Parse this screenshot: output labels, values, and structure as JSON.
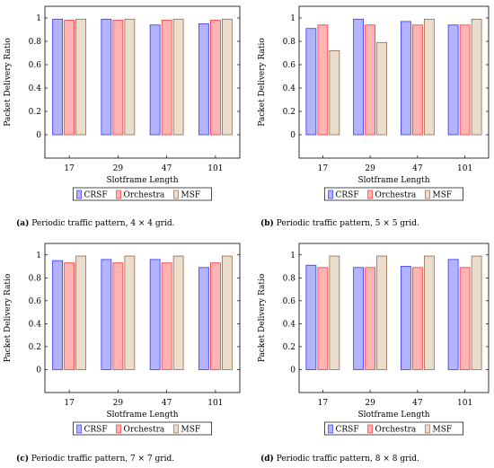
{
  "styles": {
    "series_fill": [
      "#b3b3ff",
      "#ffb3b3",
      "#ecdccc"
    ],
    "series_stroke": [
      "#3333ff",
      "#ff3333",
      "#8c6d4f"
    ]
  },
  "chart_data": [
    {
      "type": "bar",
      "panel_label": "(a)",
      "caption": "Periodic traffic pattern, 4 × 4 grid.",
      "xlabel": "Slotframe Length",
      "ylabel": "Packet Delivery Ratio",
      "categories": [
        "17",
        "29",
        "47",
        "101"
      ],
      "yticks": [
        "0",
        "0.2",
        "0.4",
        "0.6",
        "0.8",
        "1"
      ],
      "ylim": [
        -0.2,
        1.1
      ],
      "grid": false,
      "legend": "below",
      "series": [
        {
          "name": "CRSF",
          "values": [
            0.99,
            0.99,
            0.94,
            0.95
          ]
        },
        {
          "name": "Orchestra",
          "values": [
            0.98,
            0.98,
            0.98,
            0.98
          ]
        },
        {
          "name": "MSF",
          "values": [
            0.99,
            0.99,
            0.99,
            0.99
          ]
        }
      ]
    },
    {
      "type": "bar",
      "panel_label": "(b)",
      "caption": "Periodic traffic pattern, 5 × 5 grid.",
      "xlabel": "Slotframe Length",
      "ylabel": "Packet Delivery Ratio",
      "categories": [
        "17",
        "29",
        "47",
        "101"
      ],
      "yticks": [
        "0",
        "0.2",
        "0.4",
        "0.6",
        "0.8",
        "1"
      ],
      "ylim": [
        -0.2,
        1.1
      ],
      "grid": false,
      "legend": "below",
      "series": [
        {
          "name": "CRSF",
          "values": [
            0.91,
            0.99,
            0.97,
            0.94
          ]
        },
        {
          "name": "Orchestra",
          "values": [
            0.94,
            0.94,
            0.94,
            0.94
          ]
        },
        {
          "name": "MSF",
          "values": [
            0.72,
            0.79,
            0.99,
            0.99
          ]
        }
      ]
    },
    {
      "type": "bar",
      "panel_label": "(c)",
      "caption": "Periodic traffic pattern, 7 × 7 grid.",
      "xlabel": "Slotframe Length",
      "ylabel": "Packet Delivery Ratio",
      "categories": [
        "17",
        "29",
        "47",
        "101"
      ],
      "yticks": [
        "0",
        "0.2",
        "0.4",
        "0.6",
        "0.8",
        "1"
      ],
      "ylim": [
        -0.2,
        1.1
      ],
      "grid": false,
      "legend": "below",
      "series": [
        {
          "name": "CRSF",
          "values": [
            0.95,
            0.96,
            0.96,
            0.89
          ]
        },
        {
          "name": "Orchestra",
          "values": [
            0.93,
            0.93,
            0.93,
            0.93
          ]
        },
        {
          "name": "MSF",
          "values": [
            0.99,
            0.99,
            0.99,
            0.99
          ]
        }
      ]
    },
    {
      "type": "bar",
      "panel_label": "(d)",
      "caption": "Periodic traffic pattern, 8 × 8 grid.",
      "xlabel": "Slotframe Length",
      "ylabel": "Packet Delivery Ratio",
      "categories": [
        "17",
        "29",
        "47",
        "101"
      ],
      "yticks": [
        "0",
        "0.2",
        "0.4",
        "0.6",
        "0.8",
        "1"
      ],
      "ylim": [
        -0.2,
        1.1
      ],
      "grid": false,
      "legend": "below",
      "series": [
        {
          "name": "CRSF",
          "values": [
            0.91,
            0.89,
            0.9,
            0.96
          ]
        },
        {
          "name": "Orchestra",
          "values": [
            0.89,
            0.89,
            0.89,
            0.89
          ]
        },
        {
          "name": "MSF",
          "values": [
            0.99,
            0.99,
            0.99,
            0.99
          ]
        }
      ]
    }
  ]
}
